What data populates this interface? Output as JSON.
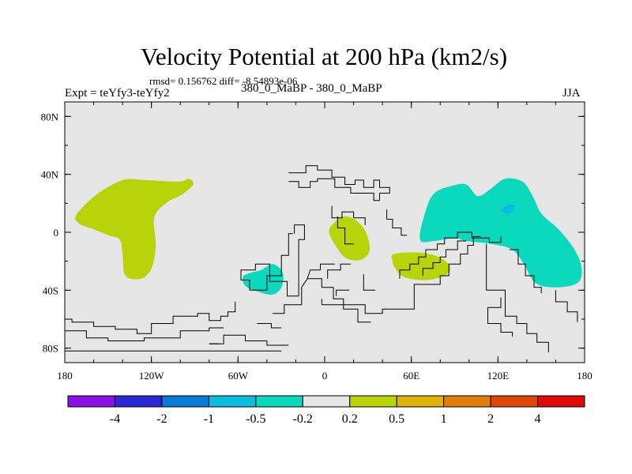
{
  "chart_data": {
    "type": "heatmap",
    "title": "Velocity Potential at 200 hPa (km2/s)",
    "stats_line": "rmsd= 0.156762 diff= -8.54893e-06",
    "left_label": "Expt = teYfy3-teYfy2",
    "case_label": "380_0_MaBP - 380_0_MaBP",
    "right_label": "JJA",
    "xlim": [
      -180,
      180
    ],
    "ylim": [
      -90,
      90
    ],
    "x_ticks": [
      -180,
      -120,
      -60,
      0,
      60,
      120,
      180
    ],
    "x_tick_labels": [
      "180",
      "120W",
      "60W",
      "0",
      "60E",
      "120E",
      "180"
    ],
    "y_ticks": [
      80,
      40,
      0,
      -40,
      -80
    ],
    "y_tick_labels": [
      "80N",
      "40N",
      "0",
      "40S",
      "80S"
    ],
    "colorbar": {
      "colors": [
        "#8a10e6",
        "#2d28d6",
        "#0a7ad8",
        "#0bbbe0",
        "#0ad9be",
        "#e6e6e6",
        "#b8d30a",
        "#dcb10a",
        "#e07e0a",
        "#e0460a",
        "#e00a0a"
      ],
      "labels": [
        "-4",
        "-2",
        "-1",
        "-0.5",
        "-0.2",
        "0.2",
        "0.5",
        "1",
        "2",
        "4"
      ]
    },
    "regions": [
      {
        "level": "0.2 to 0.5",
        "color": "#b8d30a",
        "points": [
          [
            -172,
            12
          ],
          [
            -158,
            26
          ],
          [
            -140,
            36
          ],
          [
            -124,
            36
          ],
          [
            -101,
            35
          ],
          [
            -94,
            37
          ],
          [
            -91,
            33
          ],
          [
            -99,
            26
          ],
          [
            -110,
            20
          ],
          [
            -118,
            10
          ],
          [
            -117,
            -10
          ],
          [
            -120,
            -25
          ],
          [
            -127,
            -32
          ],
          [
            -138,
            -30
          ],
          [
            -140,
            -15
          ],
          [
            -142,
            -5
          ],
          [
            -150,
            -2
          ],
          [
            -160,
            2
          ],
          [
            -170,
            6
          ]
        ]
      },
      {
        "level": "0.2 to 0.5",
        "color": "#b8d30a",
        "points": [
          [
            6,
            6
          ],
          [
            13,
            11
          ],
          [
            22,
            8
          ],
          [
            29,
            -1
          ],
          [
            31,
            -13
          ],
          [
            25,
            -19
          ],
          [
            15,
            -18
          ],
          [
            8,
            -10
          ],
          [
            3,
            0
          ]
        ]
      },
      {
        "level": "0.2 to 0.5",
        "color": "#b8d30a",
        "points": [
          [
            48,
            -15
          ],
          [
            65,
            -14
          ],
          [
            79,
            -17
          ],
          [
            87,
            -24
          ],
          [
            83,
            -30
          ],
          [
            70,
            -33
          ],
          [
            55,
            -31
          ],
          [
            49,
            -25
          ],
          [
            47,
            -20
          ]
        ]
      },
      {
        "level": "-0.5 to -0.2",
        "color": "#0ad9be",
        "points": [
          [
            -56,
            -30
          ],
          [
            -44,
            -26
          ],
          [
            -36,
            -22
          ],
          [
            -29,
            -28
          ],
          [
            -30,
            -38
          ],
          [
            -36,
            -43
          ],
          [
            -46,
            -41
          ],
          [
            -55,
            -37
          ]
        ]
      },
      {
        "level": "-0.5 to -0.2",
        "color": "#0ad9be",
        "points": [
          [
            66,
            -5
          ],
          [
            70,
            15
          ],
          [
            76,
            27
          ],
          [
            88,
            32
          ],
          [
            98,
            33
          ],
          [
            106,
            25
          ],
          [
            115,
            30
          ],
          [
            125,
            37
          ],
          [
            137,
            35
          ],
          [
            144,
            25
          ],
          [
            150,
            13
          ],
          [
            162,
            2
          ],
          [
            173,
            -12
          ],
          [
            178,
            -25
          ],
          [
            175,
            -35
          ],
          [
            160,
            -38
          ],
          [
            146,
            -35
          ],
          [
            138,
            -22
          ],
          [
            130,
            -12
          ],
          [
            115,
            -8
          ],
          [
            98,
            -6
          ],
          [
            90,
            -4
          ],
          [
            76,
            -6
          ]
        ]
      },
      {
        "level": "-1 to -0.5",
        "color": "#0bbbe0",
        "points": [
          [
            122,
            15
          ],
          [
            127,
            19
          ],
          [
            132,
            18
          ],
          [
            128,
            13
          ]
        ]
      }
    ],
    "coastlines": [
      [
        [
          -25,
          41
        ],
        [
          -13,
          41
        ],
        [
          -13,
          46
        ],
        [
          -5,
          46
        ],
        [
          -5,
          43
        ],
        [
          5,
          43
        ],
        [
          5,
          38
        ],
        [
          14,
          38
        ],
        [
          14,
          33
        ],
        [
          21,
          33
        ],
        [
          21,
          36
        ],
        [
          27,
          36
        ],
        [
          27,
          31
        ],
        [
          34,
          31
        ],
        [
          34,
          36
        ],
        [
          38,
          36
        ],
        [
          38,
          31
        ],
        [
          45,
          31
        ],
        [
          45,
          27
        ],
        [
          38,
          27
        ],
        [
          38,
          22
        ],
        [
          34,
          22
        ],
        [
          34,
          27
        ],
        [
          18,
          27
        ],
        [
          18,
          31
        ],
        [
          7,
          31
        ],
        [
          7,
          37
        ],
        [
          -5,
          37
        ],
        [
          -5,
          35
        ],
        [
          -10,
          35
        ],
        [
          -10,
          31
        ],
        [
          -18,
          31
        ],
        [
          -18,
          35
        ],
        [
          -25,
          35
        ]
      ],
      [
        [
          5,
          18
        ],
        [
          5,
          10
        ],
        [
          12,
          10
        ],
        [
          12,
          14
        ],
        [
          20,
          14
        ],
        [
          20,
          10
        ],
        [
          28,
          10
        ],
        [
          28,
          5
        ]
      ],
      [
        [
          43,
          16
        ],
        [
          43,
          9
        ],
        [
          47,
          9
        ],
        [
          47,
          3
        ],
        [
          53,
          3
        ],
        [
          53,
          -2
        ],
        [
          57,
          -2
        ]
      ],
      [
        [
          9,
          11
        ],
        [
          9,
          3
        ],
        [
          14,
          3
        ],
        [
          14,
          -8
        ],
        [
          20,
          -8
        ]
      ],
      [
        [
          -22,
          -1
        ],
        [
          -25,
          -1
        ],
        [
          -25,
          -16
        ],
        [
          -30,
          -16
        ],
        [
          -30,
          -30
        ],
        [
          -40,
          -30
        ],
        [
          -40,
          -40
        ],
        [
          -52,
          -40
        ],
        [
          -52,
          -33
        ],
        [
          -58,
          -33
        ],
        [
          -58,
          -26
        ],
        [
          -48,
          -26
        ],
        [
          -48,
          -22
        ],
        [
          -38,
          -22
        ],
        [
          -38,
          -34
        ],
        [
          -26,
          -34
        ],
        [
          -26,
          -44
        ],
        [
          -18,
          -44
        ],
        [
          -18,
          -5
        ],
        [
          -14,
          -5
        ],
        [
          -14,
          5
        ],
        [
          -21,
          5
        ],
        [
          -21,
          -1
        ]
      ],
      [
        [
          -12,
          -32
        ],
        [
          -2,
          -32
        ],
        [
          -2,
          -38
        ],
        [
          6,
          -38
        ],
        [
          6,
          -46
        ],
        [
          13,
          -46
        ],
        [
          13,
          -53
        ],
        [
          23,
          -53
        ],
        [
          23,
          -62
        ],
        [
          32,
          -62
        ]
      ],
      [
        [
          -12,
          -32
        ],
        [
          -16,
          -38
        ],
        [
          -16,
          -50
        ],
        [
          -28,
          -50
        ],
        [
          -28,
          -56
        ],
        [
          -36,
          -56
        ]
      ],
      [
        [
          2,
          -32
        ],
        [
          2,
          -26
        ],
        [
          11,
          -26
        ],
        [
          11,
          -22
        ],
        [
          18,
          -22
        ]
      ],
      [
        [
          -12,
          -32
        ],
        [
          -10,
          -26
        ],
        [
          -3,
          -26
        ],
        [
          -3,
          -22
        ],
        [
          7,
          -22
        ]
      ],
      [
        [
          17,
          -40
        ],
        [
          8,
          -40
        ],
        [
          8,
          -44
        ]
      ],
      [
        [
          27,
          -29
        ],
        [
          27,
          -40
        ],
        [
          35,
          -40
        ]
      ],
      [
        [
          -2,
          -50
        ],
        [
          28,
          -50
        ],
        [
          28,
          -56
        ],
        [
          40,
          -56
        ],
        [
          40,
          -53
        ],
        [
          62,
          -53
        ],
        [
          62,
          -36
        ],
        [
          80,
          -36
        ],
        [
          80,
          -30
        ],
        [
          86,
          -30
        ],
        [
          86,
          -22
        ],
        [
          94,
          -22
        ],
        [
          94,
          -15
        ],
        [
          99,
          -15
        ],
        [
          99,
          -9
        ],
        [
          103,
          -9
        ],
        [
          103,
          -3
        ],
        [
          108,
          -3
        ]
      ],
      [
        [
          -2,
          -50
        ],
        [
          -2,
          -46
        ]
      ],
      [
        [
          52,
          -32
        ],
        [
          52,
          -26
        ],
        [
          59,
          -26
        ],
        [
          59,
          -22
        ],
        [
          65,
          -22
        ],
        [
          65,
          -17
        ],
        [
          70,
          -17
        ],
        [
          70,
          -12
        ],
        [
          78,
          -12
        ],
        [
          78,
          -8
        ],
        [
          83,
          -8
        ],
        [
          83,
          -4
        ],
        [
          92,
          -4
        ],
        [
          92,
          0
        ],
        [
          102,
          0
        ],
        [
          102,
          -4
        ],
        [
          114,
          -4
        ],
        [
          114,
          -7
        ],
        [
          122,
          -7
        ],
        [
          122,
          -3
        ]
      ],
      [
        [
          68,
          -30
        ],
        [
          68,
          -25
        ],
        [
          75,
          -25
        ],
        [
          75,
          -21
        ],
        [
          80,
          -21
        ],
        [
          80,
          -17
        ],
        [
          84,
          -17
        ],
        [
          84,
          -12
        ],
        [
          92,
          -12
        ],
        [
          92,
          -6
        ],
        [
          98,
          -6
        ]
      ],
      [
        [
          128,
          -12
        ],
        [
          134,
          -12
        ],
        [
          134,
          -22
        ],
        [
          139,
          -22
        ],
        [
          139,
          -30
        ],
        [
          145,
          -30
        ],
        [
          145,
          -38
        ],
        [
          150,
          -38
        ],
        [
          150,
          -42
        ]
      ],
      [
        [
          112,
          -8
        ],
        [
          112,
          -40
        ],
        [
          125,
          -40
        ],
        [
          125,
          -58
        ],
        [
          133,
          -58
        ],
        [
          133,
          -63
        ],
        [
          140,
          -63
        ],
        [
          140,
          -70
        ],
        [
          147,
          -70
        ],
        [
          147,
          -76
        ],
        [
          155,
          -76
        ],
        [
          155,
          -83
        ]
      ],
      [
        [
          122,
          -45
        ],
        [
          122,
          -52
        ],
        [
          113,
          -52
        ],
        [
          113,
          -63
        ],
        [
          122,
          -63
        ],
        [
          122,
          -69
        ],
        [
          130,
          -69
        ],
        [
          130,
          -72
        ]
      ],
      [
        [
          160,
          -40
        ],
        [
          160,
          -48
        ],
        [
          168,
          -48
        ],
        [
          168,
          -55
        ],
        [
          175,
          -55
        ],
        [
          175,
          -62
        ]
      ],
      [
        [
          -180,
          -60
        ],
        [
          -175,
          -60
        ],
        [
          -175,
          -62
        ],
        [
          -160,
          -62
        ],
        [
          -160,
          -65
        ],
        [
          -145,
          -65
        ],
        [
          -145,
          -67
        ],
        [
          -130,
          -67
        ],
        [
          -130,
          -70
        ],
        [
          -120,
          -70
        ],
        [
          -120,
          -63
        ],
        [
          -105,
          -63
        ],
        [
          -105,
          -58
        ],
        [
          -88,
          -58
        ],
        [
          -88,
          -56
        ],
        [
          -80,
          -56
        ],
        [
          -80,
          -61
        ],
        [
          -72,
          -61
        ],
        [
          -72,
          -58
        ],
        [
          -67,
          -58
        ],
        [
          -67,
          -55
        ],
        [
          -62,
          -55
        ],
        [
          -62,
          -48
        ]
      ],
      [
        [
          -180,
          -68
        ],
        [
          -165,
          -68
        ],
        [
          -165,
          -73
        ],
        [
          -150,
          -73
        ],
        [
          -150,
          -75
        ],
        [
          -125,
          -75
        ],
        [
          -125,
          -73
        ],
        [
          -100,
          -73
        ],
        [
          -100,
          -68
        ],
        [
          -80,
          -68
        ],
        [
          -80,
          -66
        ],
        [
          -70,
          -66
        ]
      ],
      [
        [
          -180,
          -82
        ],
        [
          -30,
          -82
        ]
      ],
      [
        [
          -80,
          -77
        ],
        [
          -70,
          -77
        ],
        [
          -70,
          -71
        ],
        [
          -55,
          -71
        ],
        [
          -55,
          -75
        ],
        [
          -40,
          -75
        ],
        [
          -40,
          -78
        ],
        [
          -25,
          -78
        ]
      ],
      [
        [
          -47,
          -63
        ],
        [
          -37,
          -63
        ],
        [
          -37,
          -66
        ],
        [
          -30,
          -66
        ]
      ],
      [
        [
          -73,
          -77
        ],
        [
          -80,
          -77
        ]
      ]
    ]
  }
}
